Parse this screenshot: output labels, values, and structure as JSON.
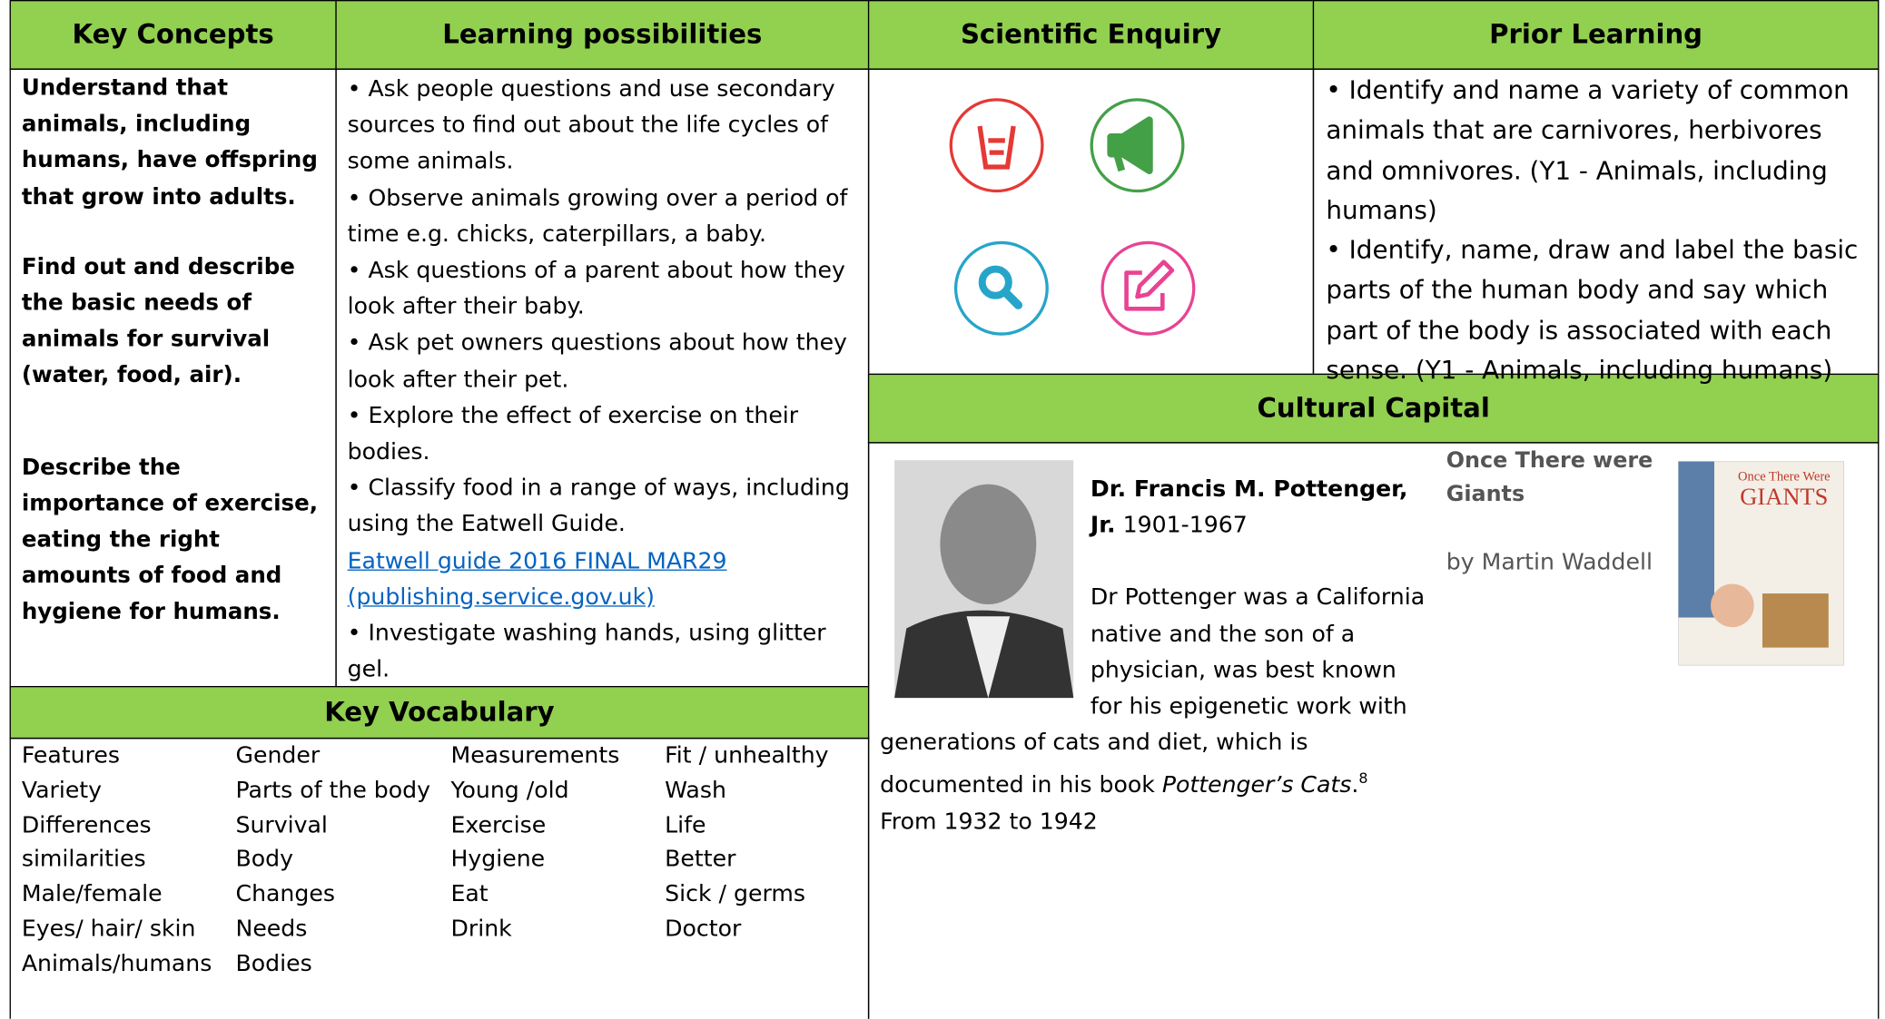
{
  "key_concepts": {
    "header": "Key Concepts",
    "items": [
      "Understand that animals, including humans, have offspring that grow into adults.",
      "Find out and describe the basic needs of animals for survival (water, food, air).",
      "Describe the importance of exercise, eating the right amounts of food and hygiene for humans."
    ]
  },
  "learning_possibilities": {
    "header": "Learning possibilities",
    "items": [
      "Ask people questions and use secondary sources to find out about the life cycles of some animals.",
      "Observe animals growing over a period of time e.g. chicks, caterpillars, a baby.",
      "Ask questions of a parent about how they look after their baby.",
      "Ask pet owners questions about how they look after their pet.",
      " Explore the effect of exercise on their bodies.",
      "Classify food in a range of ways, including using the Eatwell Guide."
    ],
    "link": "Eatwell guide 2016 FINAL MAR29 (publishing.service.gov.uk)",
    "last_item": "Investigate washing hands, using glitter gel."
  },
  "scientific_enquiry": {
    "header": "Scientific Enquiry"
  },
  "prior_learning": {
    "header": "Prior Learning",
    "items": [
      "Identify and name a variety of common animals that are carnivores, herbivores and omnivores. (Y1 - Animals, including humans)",
      "Identify, name, draw and label the basic parts of the human body and say which part of the body is associated with each sense. (Y1 - Animals, including humans)"
    ]
  },
  "cultural_capital": {
    "header": "Cultural Capital",
    "person_name": "Dr. Francis M. Pottenger, Jr.",
    "person_dates": "1901-1967",
    "bio_before": "Dr Pottenger was a California native and the son of a physician, was best known for his epigenetic work with generations of cats and diet, which is documented in his book",
    "bio_book": "Pottenger’s Cats",
    "bio_note": "8",
    "bio_after": "From 1932 to 1942",
    "book_title": "Once There were Giants",
    "book_author": "by Martin Waddell",
    "cover_top": "Once There Were",
    "cover_title": "GIANTS"
  },
  "key_vocabulary": {
    "header": "Key Vocabulary",
    "columns": [
      [
        "Features",
        "Variety",
        "Differences",
        "similarities",
        "Male/female",
        "Eyes/ hair/ skin",
        "Animals/humans"
      ],
      [
        "Gender",
        "Parts of the body",
        "Survival",
        "Body",
        "Changes",
        "Needs",
        "Bodies"
      ],
      [
        "Measurements",
        "Young /old",
        "Exercise",
        "Hygiene",
        "Eat",
        "Drink"
      ],
      [
        "Fit / unhealthy",
        "Wash",
        "Life",
        "Better",
        "Sick / germs",
        "Doctor"
      ]
    ]
  }
}
